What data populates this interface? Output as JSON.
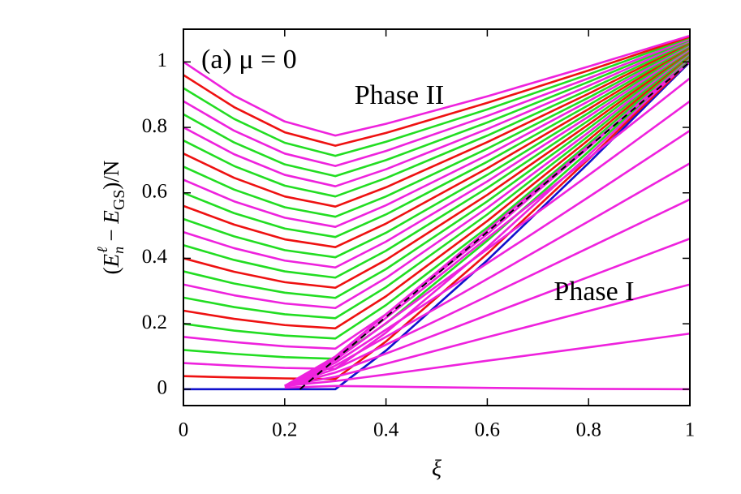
{
  "chart_data": {
    "type": "line",
    "annotations": [
      "(a) μ = 0",
      "Phase II",
      "Phase I"
    ],
    "xlabel": "ξ",
    "ylabel": [
      "(",
      "E",
      "n",
      "ℓ",
      " − ",
      "E",
      "GS",
      ")/N"
    ],
    "x": [
      0,
      0.1,
      0.2,
      0.3,
      0.4,
      0.6,
      0.8,
      1
    ],
    "xlim": [
      0,
      1
    ],
    "ylim": [
      -0.05,
      1.1
    ],
    "xticks": [
      0,
      0.2,
      0.4,
      0.6,
      0.8,
      1
    ],
    "yticks": [
      0,
      0.2,
      0.4,
      0.6,
      0.8,
      1
    ],
    "series": [
      {
        "color": "#1010cc",
        "values": [
          0,
          0,
          0,
          0,
          0.118,
          0.394,
          0.691,
          1
        ]
      },
      {
        "color": "#ee1111",
        "values": [
          0.04,
          0.036,
          0.033,
          0.031,
          0.146,
          0.414,
          0.703,
          1.003
        ]
      },
      {
        "color": "#ee22dd",
        "values": [
          0.08,
          0.072,
          0.065,
          0.062,
          0.173,
          0.434,
          0.715,
          1.006
        ]
      },
      {
        "color": "#22dd22",
        "values": [
          0.12,
          0.108,
          0.098,
          0.093,
          0.201,
          0.454,
          0.726,
          1.01
        ]
      },
      {
        "color": "#ee22dd",
        "values": [
          0.16,
          0.144,
          0.131,
          0.124,
          0.229,
          0.474,
          0.738,
          1.013
        ]
      },
      {
        "color": "#22dd22",
        "values": [
          0.2,
          0.179,
          0.164,
          0.155,
          0.257,
          0.494,
          0.75,
          1.016
        ]
      },
      {
        "color": "#ee1111",
        "values": [
          0.24,
          0.215,
          0.196,
          0.186,
          0.284,
          0.514,
          0.762,
          1.019
        ]
      },
      {
        "color": "#22dd22",
        "values": [
          0.28,
          0.251,
          0.229,
          0.217,
          0.312,
          0.534,
          0.774,
          1.022
        ]
      },
      {
        "color": "#ee22dd",
        "values": [
          0.32,
          0.287,
          0.262,
          0.248,
          0.34,
          0.554,
          0.785,
          1.026
        ]
      },
      {
        "color": "#22dd22",
        "values": [
          0.36,
          0.323,
          0.295,
          0.279,
          0.367,
          0.574,
          0.797,
          1.029
        ]
      },
      {
        "color": "#ee1111",
        "values": [
          0.4,
          0.359,
          0.327,
          0.31,
          0.395,
          0.594,
          0.809,
          1.032
        ]
      },
      {
        "color": "#22dd22",
        "values": [
          0.44,
          0.395,
          0.36,
          0.341,
          0.423,
          0.615,
          0.821,
          1.035
        ]
      },
      {
        "color": "#ee22dd",
        "values": [
          0.48,
          0.431,
          0.393,
          0.372,
          0.451,
          0.635,
          0.833,
          1.038
        ]
      },
      {
        "color": "#22dd22",
        "values": [
          0.52,
          0.467,
          0.425,
          0.403,
          0.478,
          0.655,
          0.844,
          1.042
        ]
      },
      {
        "color": "#ee1111",
        "values": [
          0.56,
          0.503,
          0.458,
          0.434,
          0.506,
          0.675,
          0.856,
          1.045
        ]
      },
      {
        "color": "#22dd22",
        "values": [
          0.6,
          0.538,
          0.491,
          0.465,
          0.534,
          0.695,
          0.868,
          1.048
        ]
      },
      {
        "color": "#ee22dd",
        "values": [
          0.64,
          0.574,
          0.524,
          0.496,
          0.562,
          0.715,
          0.88,
          1.051
        ]
      },
      {
        "color": "#22dd22",
        "values": [
          0.68,
          0.61,
          0.556,
          0.527,
          0.589,
          0.735,
          0.891,
          1.054
        ]
      },
      {
        "color": "#ee1111",
        "values": [
          0.72,
          0.646,
          0.589,
          0.558,
          0.617,
          0.755,
          0.903,
          1.058
        ]
      },
      {
        "color": "#22dd22",
        "values": [
          0.76,
          0.682,
          0.622,
          0.589,
          0.645,
          0.775,
          0.915,
          1.061
        ]
      },
      {
        "color": "#ee22dd",
        "values": [
          0.8,
          0.718,
          0.655,
          0.62,
          0.672,
          0.795,
          0.927,
          1.064
        ]
      },
      {
        "color": "#22dd22",
        "values": [
          0.84,
          0.754,
          0.687,
          0.651,
          0.7,
          0.815,
          0.939,
          1.067
        ]
      },
      {
        "color": "#ee22dd",
        "values": [
          0.88,
          0.79,
          0.72,
          0.682,
          0.728,
          0.835,
          0.95,
          1.07
        ]
      },
      {
        "color": "#22dd22",
        "values": [
          0.92,
          0.826,
          0.753,
          0.713,
          0.756,
          0.855,
          0.962,
          1.074
        ]
      },
      {
        "color": "#ee1111",
        "values": [
          0.96,
          0.862,
          0.785,
          0.744,
          0.783,
          0.875,
          0.974,
          1.077
        ]
      },
      {
        "color": "#ee22dd",
        "values": [
          1,
          0.897,
          0.818,
          0.775,
          0.811,
          0.895,
          0.986,
          1.08
        ]
      },
      {
        "color": "#ee22dd",
        "values": [
          null,
          null,
          0.005,
          0.01,
          0.008,
          0.004,
          0.001,
          0
        ]
      },
      {
        "color": "#ee22dd",
        "values": [
          null,
          null,
          0.01,
          0.025,
          0.045,
          0.087,
          0.128,
          0.17
        ]
      },
      {
        "color": "#ee22dd",
        "values": [
          null,
          null,
          0.01,
          0.038,
          0.078,
          0.159,
          0.239,
          0.32
        ]
      },
      {
        "color": "#ee22dd",
        "values": [
          null,
          null,
          0.01,
          0.051,
          0.109,
          0.226,
          0.343,
          0.46
        ]
      },
      {
        "color": "#ee22dd",
        "values": [
          null,
          null,
          0.01,
          0.062,
          0.136,
          0.284,
          0.432,
          0.58
        ]
      },
      {
        "color": "#ee22dd",
        "values": [
          null,
          null,
          0.01,
          0.072,
          0.16,
          0.337,
          0.513,
          0.69
        ]
      },
      {
        "color": "#ee22dd",
        "values": [
          null,
          null,
          0.01,
          0.081,
          0.182,
          0.385,
          0.587,
          0.79
        ]
      },
      {
        "color": "#ee22dd",
        "values": [
          null,
          null,
          0.01,
          0.089,
          0.202,
          0.428,
          0.654,
          0.88
        ]
      },
      {
        "color": "#ee22dd",
        "values": [
          null,
          null,
          0.01,
          0.095,
          0.218,
          0.462,
          0.706,
          0.95
        ]
      },
      {
        "color": "#ee22dd",
        "values": [
          null,
          null,
          0.01,
          0.1,
          0.229,
          0.486,
          0.743,
          1
        ]
      },
      {
        "color": "#000000",
        "dashed": true,
        "x": [
          0.23,
          1
        ],
        "values": [
          0,
          1
        ]
      }
    ]
  }
}
